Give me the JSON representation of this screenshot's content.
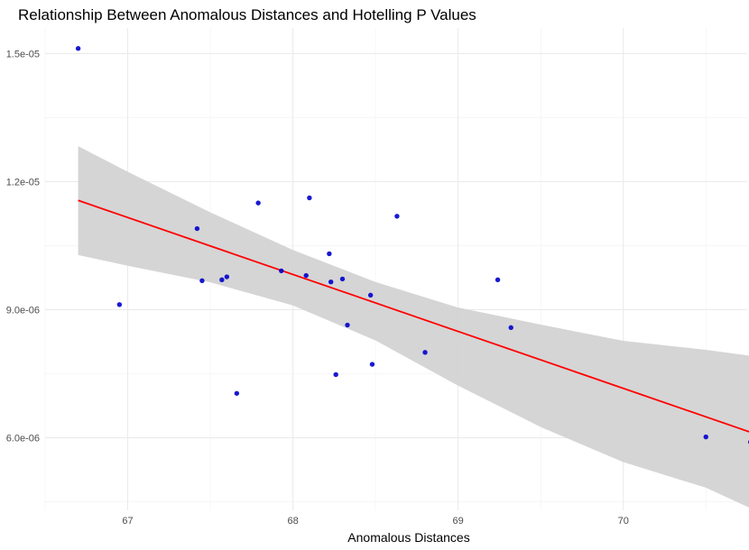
{
  "chart_data": {
    "type": "scatter",
    "title": "Relationship Between Anomalous Distances and Hotelling P Values",
    "xlabel": "Anomalous Distances",
    "ylabel": "",
    "xlim": [
      66.5,
      70.75
    ],
    "ylim": [
      4.3e-06,
      1.56e-05
    ],
    "x_ticks": [
      67,
      68,
      69,
      70
    ],
    "x_tick_labels": [
      "67",
      "68",
      "69",
      "70"
    ],
    "x_minor_ticks": [
      66.5,
      67.5,
      68.5,
      69.5,
      70.5
    ],
    "y_ticks": [
      6e-06,
      9e-06,
      1.2e-05,
      1.5e-05
    ],
    "y_tick_labels": [
      "6.0e-06",
      "9.0e-06",
      "1.2e-05",
      "1.5e-05"
    ],
    "y_minor_ticks": [
      4.5e-06,
      7.5e-06,
      1.05e-05,
      1.35e-05
    ],
    "grid": true,
    "points": {
      "color": "#0000cd",
      "x": [
        66.7,
        66.95,
        67.42,
        67.45,
        67.57,
        67.6,
        67.66,
        67.79,
        67.93,
        68.08,
        68.1,
        68.22,
        68.23,
        68.26,
        68.3,
        68.33,
        68.47,
        68.48,
        68.63,
        68.8,
        69.24,
        69.32,
        70.5,
        70.77
      ],
      "y": [
        1.512e-05,
        9.12e-06,
        1.09e-05,
        9.68e-06,
        9.7e-06,
        9.77e-06,
        7.04e-06,
        1.15e-05,
        9.91e-06,
        9.8e-06,
        1.162e-05,
        1.031e-05,
        9.65e-06,
        7.48e-06,
        9.72e-06,
        8.64e-06,
        9.34e-06,
        7.72e-06,
        1.119e-05,
        8e-06,
        9.7e-06,
        8.58e-06,
        6.02e-06,
        5.9e-06
      ]
    },
    "fit_line": {
      "color": "#ff0000",
      "x": [
        66.7,
        70.77
      ],
      "y": [
        1.156e-05,
        6.13e-06
      ]
    },
    "confidence_band": {
      "color": "#d3d3d3",
      "x": [
        66.7,
        67.0,
        67.5,
        68.0,
        68.5,
        69.0,
        69.5,
        70.0,
        70.5,
        70.77
      ],
      "upper": [
        1.283e-05,
        1.223e-05,
        1.128e-05,
        1.04e-05,
        9.65e-06,
        9.05e-06,
        8.65e-06,
        8.27e-06,
        8.06e-06,
        7.92e-06
      ],
      "lower": [
        1.028e-05,
        1.003e-05,
        9.64e-06,
        9.1e-06,
        8.28e-06,
        7.22e-06,
        6.25e-06,
        5.43e-06,
        4.83e-06,
        4.35e-06
      ]
    }
  }
}
